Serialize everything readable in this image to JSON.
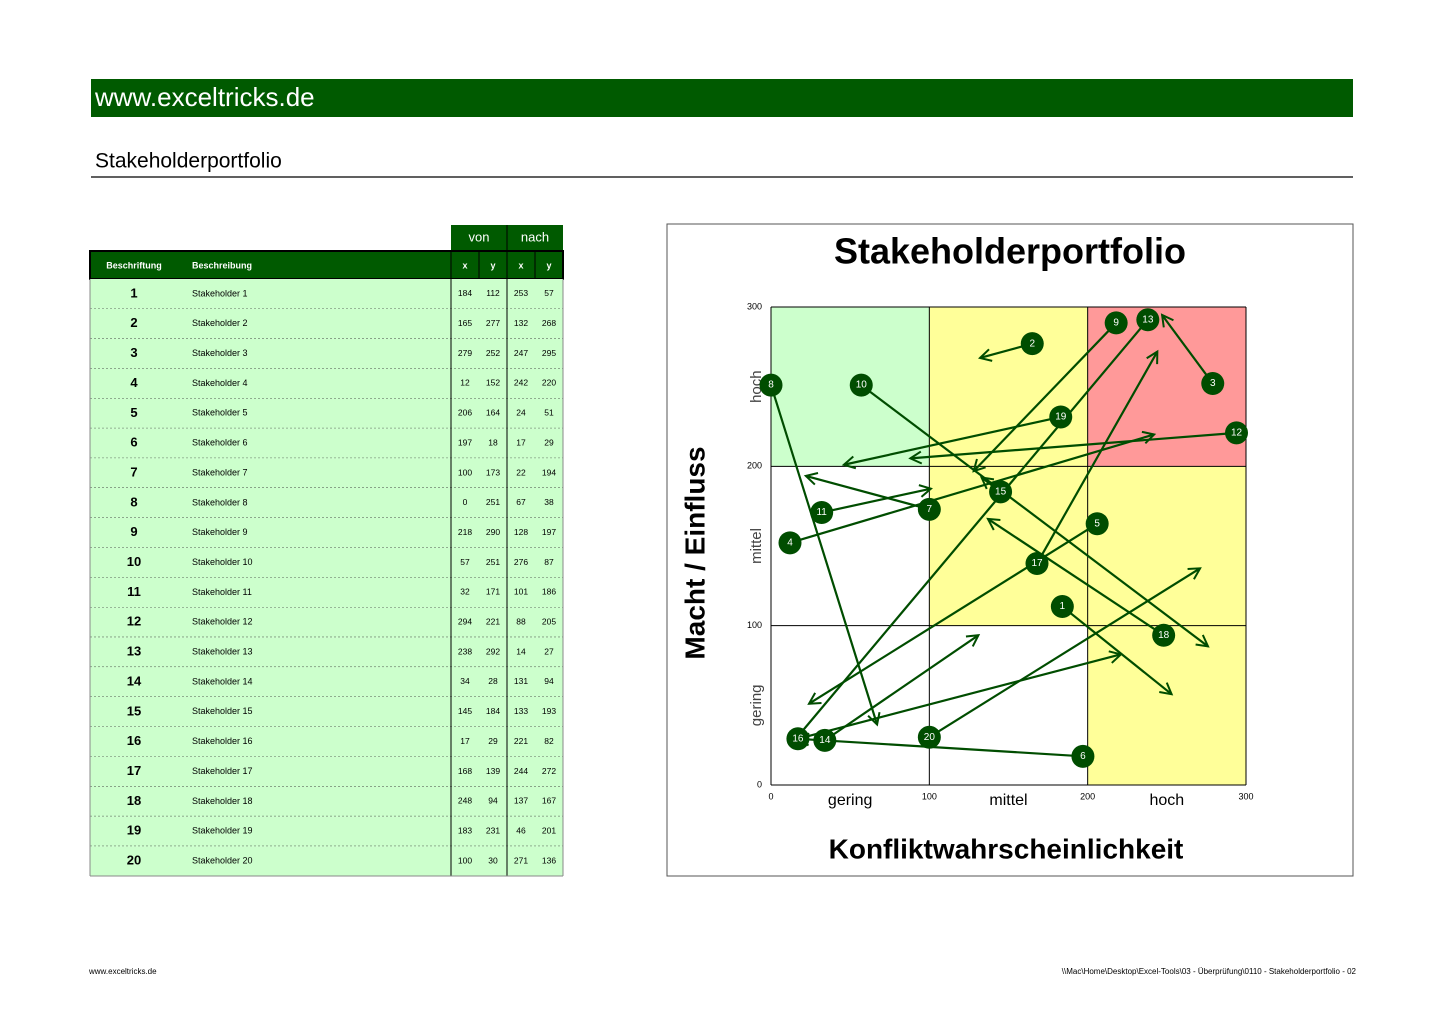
{
  "header": {
    "site": "www.exceltricks.de",
    "title": "Stakeholderportfolio"
  },
  "table": {
    "group_headers": [
      "von",
      "nach"
    ],
    "headers": [
      "Beschriftung",
      "Beschreibung",
      "x",
      "y",
      "x",
      "y"
    ]
  },
  "chart_data": {
    "type": "arrow",
    "title": "Stakeholderportfolio",
    "x_label": "Konfliktwahrscheinlichkeit",
    "y_label": "Macht / Einfluss",
    "xlim": [
      0,
      300
    ],
    "ylim": [
      0,
      300
    ],
    "xticks": [
      0,
      100,
      200,
      300
    ],
    "yticks": [
      0,
      100,
      200,
      300
    ],
    "x_zones": [
      "gering",
      "mittel",
      "hoch"
    ],
    "y_zones": [
      "gering",
      "mittel",
      "hoch"
    ],
    "zone_colors": [
      [
        "#ffffff",
        "#ffffff",
        "#ffff99"
      ],
      [
        "#ffffff",
        "#ffff99",
        "#ffff99"
      ],
      [
        "#ccffcc",
        "#ffff99",
        "#ff9999"
      ]
    ],
    "color": "#004d00",
    "series": [
      {
        "label": "1",
        "name": "Stakeholder 1",
        "x": 184,
        "y": 112,
        "x2": 253,
        "y2": 57
      },
      {
        "label": "2",
        "name": "Stakeholder 2",
        "x": 165,
        "y": 277,
        "x2": 132,
        "y2": 268
      },
      {
        "label": "3",
        "name": "Stakeholder 3",
        "x": 279,
        "y": 252,
        "x2": 247,
        "y2": 295
      },
      {
        "label": "4",
        "name": "Stakeholder 4",
        "x": 12,
        "y": 152,
        "x2": 242,
        "y2": 220
      },
      {
        "label": "5",
        "name": "Stakeholder 5",
        "x": 206,
        "y": 164,
        "x2": 24,
        "y2": 51
      },
      {
        "label": "6",
        "name": "Stakeholder 6",
        "x": 197,
        "y": 18,
        "x2": 17,
        "y2": 29
      },
      {
        "label": "7",
        "name": "Stakeholder 7",
        "x": 100,
        "y": 173,
        "x2": 22,
        "y2": 194
      },
      {
        "label": "8",
        "name": "Stakeholder 8",
        "x": 0,
        "y": 251,
        "x2": 67,
        "y2": 38
      },
      {
        "label": "9",
        "name": "Stakeholder 9",
        "x": 218,
        "y": 290,
        "x2": 128,
        "y2": 197
      },
      {
        "label": "10",
        "name": "Stakeholder 10",
        "x": 57,
        "y": 251,
        "x2": 276,
        "y2": 87
      },
      {
        "label": "11",
        "name": "Stakeholder 11",
        "x": 32,
        "y": 171,
        "x2": 101,
        "y2": 186
      },
      {
        "label": "12",
        "name": "Stakeholder 12",
        "x": 294,
        "y": 221,
        "x2": 88,
        "y2": 205
      },
      {
        "label": "13",
        "name": "Stakeholder 13",
        "x": 238,
        "y": 292,
        "x2": 14,
        "y2": 27
      },
      {
        "label": "14",
        "name": "Stakeholder 14",
        "x": 34,
        "y": 28,
        "x2": 131,
        "y2": 94
      },
      {
        "label": "15",
        "name": "Stakeholder 15",
        "x": 145,
        "y": 184,
        "x2": 133,
        "y2": 193
      },
      {
        "label": "16",
        "name": "Stakeholder 16",
        "x": 17,
        "y": 29,
        "x2": 221,
        "y2": 82
      },
      {
        "label": "17",
        "name": "Stakeholder 17",
        "x": 168,
        "y": 139,
        "x2": 244,
        "y2": 272
      },
      {
        "label": "18",
        "name": "Stakeholder 18",
        "x": 248,
        "y": 94,
        "x2": 137,
        "y2": 167
      },
      {
        "label": "19",
        "name": "Stakeholder 19",
        "x": 183,
        "y": 231,
        "x2": 46,
        "y2": 201
      },
      {
        "label": "20",
        "name": "Stakeholder 20",
        "x": 100,
        "y": 30,
        "x2": 271,
        "y2": 136
      }
    ]
  },
  "footer": {
    "left": "www.exceltricks.de",
    "right": "\\\\Mac\\Home\\Desktop\\Excel-Tools\\03 - Überprüfung\\0110 - Stakeholderportfolio - 02"
  }
}
